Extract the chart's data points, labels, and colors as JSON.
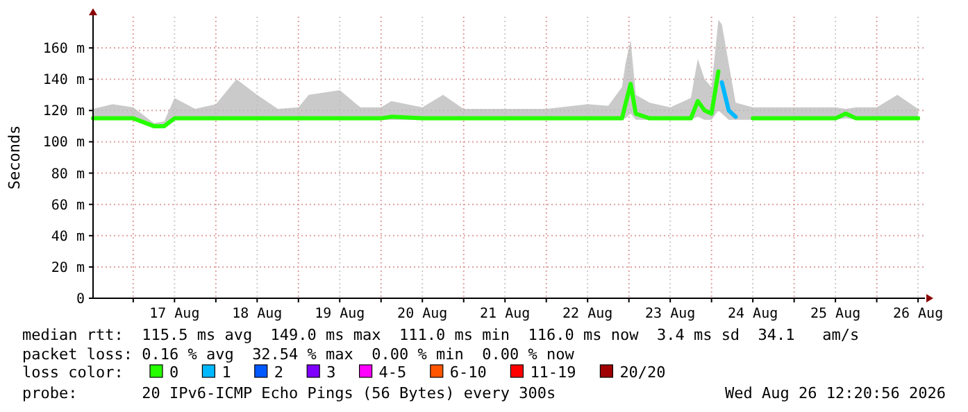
{
  "chart_data": {
    "type": "line",
    "ylabel": "Seconds",
    "x": [
      "2026-08-16T12:20",
      "2026-08-16T18:00",
      "2026-08-17T00:00",
      "2026-08-17T06:00",
      "2026-08-17T09:00",
      "2026-08-17T12:00",
      "2026-08-17T18:00",
      "2026-08-18T00:00",
      "2026-08-18T06:00",
      "2026-08-18T12:00",
      "2026-08-18T18:00",
      "2026-08-19T00:00",
      "2026-08-19T03:00",
      "2026-08-19T12:00",
      "2026-08-19T18:00",
      "2026-08-20T00:00",
      "2026-08-20T03:00",
      "2026-08-20T12:00",
      "2026-08-20T18:00",
      "2026-08-21T00:00",
      "2026-08-21T12:00",
      "2026-08-22T00:00",
      "2026-08-22T12:00",
      "2026-08-22T18:00",
      "2026-08-22T22:00",
      "2026-08-22T23:00",
      "2026-08-23T00:30",
      "2026-08-23T02:00",
      "2026-08-23T06:00",
      "2026-08-23T12:00",
      "2026-08-23T18:00",
      "2026-08-23T20:00",
      "2026-08-23T22:00",
      "2026-08-24T00:00",
      "2026-08-24T02:00",
      "2026-08-24T03:00",
      "2026-08-24T05:00",
      "2026-08-24T07:00",
      "2026-08-24T12:00",
      "2026-08-25T00:00",
      "2026-08-25T12:00",
      "2026-08-25T15:00",
      "2026-08-25T18:00",
      "2026-08-26T00:00",
      "2026-08-26T06:00",
      "2026-08-26T12:00"
    ],
    "series": [
      {
        "name": "0",
        "color": "#26ff00",
        "values": [
          115,
          115,
          115,
          110,
          110,
          115,
          115,
          115,
          115,
          115,
          115,
          115,
          115,
          115,
          115,
          115,
          116,
          115,
          115,
          115,
          115,
          115,
          115,
          115,
          115,
          124,
          137,
          118,
          115,
          115,
          115,
          126,
          120,
          118,
          145,
          null,
          null,
          null,
          115,
          115,
          115,
          118,
          115,
          115,
          115,
          115
        ],
        "lower": [
          114,
          114,
          114,
          110,
          110,
          114,
          114,
          114,
          114,
          114,
          114,
          114,
          114,
          114,
          114,
          114,
          114,
          114,
          114,
          114,
          114,
          114,
          114,
          114,
          114,
          115,
          118,
          114,
          114,
          114,
          114,
          116,
          114,
          114,
          120,
          118,
          114,
          114,
          114,
          114,
          114,
          115,
          114,
          114,
          114,
          114
        ],
        "upper": [
          121,
          124,
          122,
          112,
          113,
          128,
          121,
          124,
          140,
          130,
          121,
          122,
          130,
          133,
          122,
          122,
          126,
          122,
          130,
          121,
          121,
          121,
          124,
          123,
          135,
          150,
          165,
          130,
          125,
          122,
          128,
          153,
          140,
          135,
          178,
          175,
          150,
          125,
          122,
          122,
          122,
          121,
          122,
          122,
          130,
          121
        ]
      },
      {
        "name": "1",
        "color": "#00b8ff",
        "values": [
          null,
          null,
          null,
          null,
          null,
          null,
          null,
          null,
          null,
          null,
          null,
          null,
          null,
          null,
          null,
          null,
          null,
          null,
          null,
          null,
          null,
          null,
          null,
          null,
          null,
          null,
          null,
          null,
          null,
          null,
          null,
          null,
          null,
          null,
          null,
          138,
          120,
          116,
          null,
          null,
          null,
          null,
          null,
          null,
          null,
          null
        ]
      },
      {
        "name": "2",
        "color": "#0059ff",
        "values": [
          null,
          null,
          null,
          null,
          null,
          null,
          null,
          null,
          null,
          null,
          null,
          null,
          null,
          null,
          null,
          null,
          null,
          null,
          null,
          null,
          null,
          null,
          null,
          null,
          null,
          null,
          null,
          null,
          null,
          null,
          null,
          null,
          null,
          null,
          null,
          null,
          null,
          null,
          null,
          null,
          null,
          null,
          null,
          null,
          null,
          null
        ]
      },
      {
        "name": "3",
        "color": "#7e00ff",
        "values": [
          null,
          null,
          null,
          null,
          null,
          null,
          null,
          null,
          null,
          null,
          null,
          null,
          null,
          null,
          null,
          null,
          null,
          null,
          null,
          null,
          null,
          null,
          null,
          null,
          null,
          null,
          null,
          null,
          null,
          null,
          null,
          null,
          null,
          null,
          null,
          null,
          null,
          null,
          null,
          null,
          null,
          null,
          null,
          null,
          null,
          null
        ]
      },
      {
        "name": "4-5",
        "color": "#ff00ff",
        "values": [
          null,
          null,
          null,
          null,
          null,
          null,
          null,
          null,
          null,
          null,
          null,
          null,
          null,
          null,
          null,
          null,
          null,
          null,
          null,
          null,
          null,
          null,
          null,
          null,
          null,
          null,
          null,
          null,
          null,
          null,
          null,
          null,
          null,
          null,
          null,
          null,
          null,
          null,
          null,
          null,
          null,
          null,
          null,
          null,
          null,
          null
        ]
      },
      {
        "name": "6-10",
        "color": "#ff5500",
        "values": [
          null,
          null,
          null,
          null,
          null,
          null,
          null,
          null,
          null,
          null,
          null,
          null,
          null,
          null,
          null,
          null,
          null,
          null,
          null,
          null,
          null,
          null,
          null,
          null,
          null,
          null,
          null,
          null,
          null,
          null,
          null,
          null,
          null,
          null,
          null,
          null,
          null,
          null,
          null,
          null,
          null,
          null,
          null,
          null,
          null,
          null
        ]
      },
      {
        "name": "11-19",
        "color": "#ff0000",
        "values": [
          null,
          null,
          null,
          null,
          null,
          null,
          null,
          null,
          null,
          null,
          null,
          null,
          null,
          null,
          null,
          null,
          null,
          null,
          null,
          null,
          null,
          null,
          null,
          null,
          null,
          null,
          null,
          null,
          null,
          null,
          null,
          null,
          null,
          null,
          null,
          null,
          null,
          null,
          null,
          null,
          null,
          null,
          null,
          null,
          null,
          null
        ]
      },
      {
        "name": "20/20",
        "color": "#a10000",
        "values": [
          null,
          null,
          null,
          null,
          null,
          null,
          null,
          null,
          null,
          null,
          null,
          null,
          null,
          null,
          null,
          null,
          null,
          null,
          null,
          null,
          null,
          null,
          null,
          null,
          null,
          null,
          null,
          null,
          null,
          null,
          null,
          null,
          null,
          null,
          null,
          null,
          null,
          null,
          null,
          null,
          null,
          null,
          null,
          null,
          null,
          null
        ]
      }
    ],
    "xlim": [
      "2026-08-16T12:20",
      "2026-08-26T14:00"
    ],
    "xticks": [
      {
        "value": "2026-08-17T00:00",
        "label": null
      },
      {
        "value": "2026-08-17T12:00",
        "label": "17 Aug"
      },
      {
        "value": "2026-08-18T00:00",
        "label": null
      },
      {
        "value": "2026-08-18T12:00",
        "label": "18 Aug"
      },
      {
        "value": "2026-08-19T00:00",
        "label": null
      },
      {
        "value": "2026-08-19T12:00",
        "label": "19 Aug"
      },
      {
        "value": "2026-08-20T00:00",
        "label": null
      },
      {
        "value": "2026-08-20T12:00",
        "label": "20 Aug"
      },
      {
        "value": "2026-08-21T00:00",
        "label": null
      },
      {
        "value": "2026-08-21T12:00",
        "label": "21 Aug"
      },
      {
        "value": "2026-08-22T00:00",
        "label": null
      },
      {
        "value": "2026-08-22T12:00",
        "label": "22 Aug"
      },
      {
        "value": "2026-08-23T00:00",
        "label": null
      },
      {
        "value": "2026-08-23T12:00",
        "label": "23 Aug"
      },
      {
        "value": "2026-08-24T00:00",
        "label": null
      },
      {
        "value": "2026-08-24T12:00",
        "label": "24 Aug"
      },
      {
        "value": "2026-08-25T00:00",
        "label": null
      },
      {
        "value": "2026-08-25T12:00",
        "label": "25 Aug"
      },
      {
        "value": "2026-08-26T00:00",
        "label": null
      },
      {
        "value": "2026-08-26T12:00",
        "label": "26 Aug"
      }
    ],
    "ylim": [
      0,
      180
    ],
    "yticks": [
      0,
      {
        "value": 20,
        "label": "20 m"
      },
      {
        "value": 40,
        "label": "40 m"
      },
      {
        "value": 60,
        "label": "60 m"
      },
      {
        "value": 80,
        "label": "80 m"
      },
      {
        "value": 100,
        "label": "100 m"
      },
      {
        "value": 120,
        "label": "120 m"
      },
      {
        "value": 140,
        "label": "140 m"
      },
      {
        "value": 160,
        "label": "160 m"
      }
    ],
    "grid": true,
    "legend": "bottom",
    "legend_title": "loss color:",
    "marker": "none",
    "line_style": "solid",
    "annotations": [
      "median rtt:  115.5 ms avg  149.0 ms max  111.0 ms min  116.0 ms now  3.4 ms sd  34.1   am/s",
      "packet loss: 0.16 % avg  32.54 % max  0.00 % min  0.00 % now",
      "probe:       20 IPv6-ICMP Echo Pings (56 Bytes) every 300s",
      "Wed Aug 26 12:20:56 2026"
    ]
  }
}
